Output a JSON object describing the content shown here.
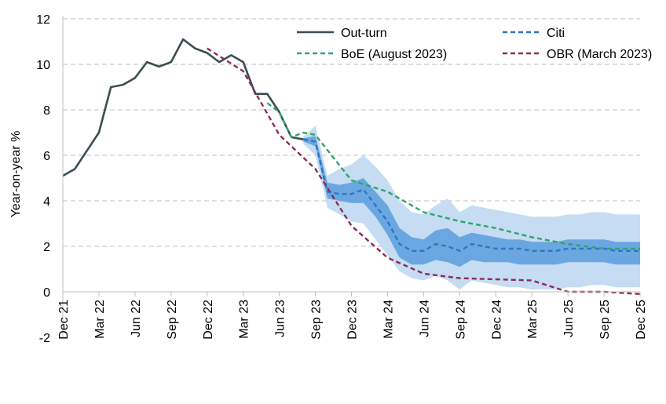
{
  "chart_data": {
    "type": "line",
    "ylabel": "Year-on-year %",
    "ylim": [
      -2,
      12
    ],
    "yticks": [
      -2,
      0,
      2,
      4,
      6,
      8,
      10,
      12
    ],
    "xlim": [
      "2021-12",
      "2025-12"
    ],
    "xticks": [
      "Dec 21",
      "Mar 22",
      "Jun 22",
      "Sep 22",
      "Dec 22",
      "Mar 23",
      "Jun 23",
      "Sep 23",
      "Dec 23",
      "Mar 24",
      "Jun 24",
      "Sep 24",
      "Dec 24",
      "Mar 25",
      "Jun 25",
      "Sep 25",
      "Dec 25"
    ],
    "grid": "horizontal dashed",
    "legend": [
      "Out-turn",
      "Citi",
      "BoE (August 2023)",
      "OBR (March 2023)"
    ],
    "series": [
      {
        "name": "Out-turn",
        "color": "#3a4e52",
        "style": "solid",
        "x": [
          "2021-12",
          "2022-01",
          "2022-02",
          "2022-03",
          "2022-04",
          "2022-05",
          "2022-06",
          "2022-07",
          "2022-08",
          "2022-09",
          "2022-10",
          "2022-11",
          "2022-12",
          "2023-01",
          "2023-02",
          "2023-03",
          "2023-04",
          "2023-05",
          "2023-06",
          "2023-07",
          "2023-08"
        ],
        "values": [
          5.1,
          5.4,
          6.2,
          7.0,
          9.0,
          9.1,
          9.4,
          10.1,
          9.9,
          10.1,
          11.1,
          10.7,
          10.5,
          10.1,
          10.4,
          10.1,
          8.7,
          8.7,
          7.9,
          6.8,
          6.7
        ]
      },
      {
        "name": "Citi",
        "color": "#2e75c4",
        "style": "dashed",
        "x": [
          "2023-08",
          "2023-09",
          "2023-10",
          "2023-11",
          "2023-12",
          "2024-01",
          "2024-02",
          "2024-03",
          "2024-04",
          "2024-05",
          "2024-06",
          "2024-07",
          "2024-08",
          "2024-09",
          "2024-10",
          "2024-11",
          "2024-12",
          "2025-01",
          "2025-02",
          "2025-03",
          "2025-04",
          "2025-05",
          "2025-06",
          "2025-07",
          "2025-08",
          "2025-09",
          "2025-10",
          "2025-11",
          "2025-12"
        ],
        "values": [
          6.7,
          6.6,
          4.4,
          4.3,
          4.3,
          4.5,
          3.8,
          3.1,
          2.1,
          1.8,
          1.8,
          2.1,
          2.0,
          1.8,
          2.1,
          2.0,
          1.9,
          1.9,
          1.9,
          1.8,
          1.8,
          1.8,
          1.9,
          1.9,
          1.9,
          1.9,
          1.8,
          1.8,
          1.8
        ]
      },
      {
        "name": "BoE (August 2023)",
        "color": "#2ea56b",
        "style": "dashed",
        "x": [
          "2023-05",
          "2023-06",
          "2023-07",
          "2023-08",
          "2023-09",
          "2023-12",
          "2024-03",
          "2024-06",
          "2024-09",
          "2024-12",
          "2025-03",
          "2025-06",
          "2025-09",
          "2025-12"
        ],
        "values": [
          8.3,
          7.9,
          6.8,
          7.0,
          6.9,
          4.9,
          4.4,
          3.5,
          3.1,
          2.8,
          2.4,
          2.1,
          1.9,
          1.9
        ]
      },
      {
        "name": "OBR (March 2023)",
        "color": "#8b2b5a",
        "style": "dashed",
        "x": [
          "2022-12",
          "2023-03",
          "2023-06",
          "2023-09",
          "2023-12",
          "2024-03",
          "2024-06",
          "2024-09",
          "2024-12",
          "2025-03",
          "2025-06",
          "2025-09",
          "2025-12"
        ],
        "values": [
          10.7,
          9.7,
          6.9,
          5.4,
          2.9,
          1.5,
          0.8,
          0.6,
          0.55,
          0.5,
          0.0,
          0.0,
          -0.1
        ]
      }
    ],
    "bands": [
      {
        "name": "outer",
        "color": "#c5dcf2",
        "x": [
          "2023-08",
          "2023-09",
          "2023-10",
          "2023-11",
          "2023-12",
          "2024-01",
          "2024-02",
          "2024-03",
          "2024-04",
          "2024-05",
          "2024-06",
          "2024-07",
          "2024-08",
          "2024-09",
          "2024-10",
          "2024-11",
          "2024-12",
          "2025-01",
          "2025-02",
          "2025-03",
          "2025-04",
          "2025-05",
          "2025-06",
          "2025-07",
          "2025-08",
          "2025-09",
          "2025-10",
          "2025-11",
          "2025-12"
        ],
        "upper": [
          6.8,
          7.3,
          5.1,
          5.4,
          5.6,
          6.0,
          5.5,
          4.9,
          4.0,
          3.5,
          3.4,
          3.8,
          4.1,
          3.5,
          3.8,
          3.7,
          3.6,
          3.5,
          3.4,
          3.3,
          3.3,
          3.3,
          3.4,
          3.4,
          3.5,
          3.5,
          3.4,
          3.4,
          3.4
        ],
        "lower": [
          6.5,
          6.0,
          3.7,
          3.4,
          3.1,
          3.0,
          2.3,
          1.6,
          0.9,
          0.6,
          0.5,
          0.7,
          0.5,
          0.1,
          0.5,
          0.4,
          0.3,
          0.2,
          0.2,
          0.1,
          0.1,
          0.1,
          0.2,
          0.2,
          0.3,
          0.3,
          0.2,
          0.2,
          0.2
        ]
      },
      {
        "name": "inner",
        "color": "#6aa7e0",
        "x": [
          "2023-08",
          "2023-09",
          "2023-10",
          "2023-11",
          "2023-12",
          "2024-01",
          "2024-02",
          "2024-03",
          "2024-04",
          "2024-05",
          "2024-06",
          "2024-07",
          "2024-08",
          "2024-09",
          "2024-10",
          "2024-11",
          "2024-12",
          "2025-01",
          "2025-02",
          "2025-03",
          "2025-04",
          "2025-05",
          "2025-06",
          "2025-07",
          "2025-08",
          "2025-09",
          "2025-10",
          "2025-11",
          "2025-12"
        ],
        "upper": [
          6.75,
          6.85,
          4.8,
          4.7,
          4.8,
          5.0,
          4.4,
          3.8,
          2.8,
          2.4,
          2.3,
          2.7,
          2.8,
          2.4,
          2.6,
          2.5,
          2.4,
          2.3,
          2.3,
          2.2,
          2.2,
          2.2,
          2.3,
          2.3,
          2.3,
          2.3,
          2.2,
          2.2,
          2.2
        ],
        "lower": [
          6.6,
          6.4,
          4.1,
          4.0,
          3.9,
          3.9,
          3.3,
          2.5,
          1.5,
          1.2,
          1.2,
          1.4,
          1.3,
          1.1,
          1.4,
          1.3,
          1.3,
          1.3,
          1.2,
          1.2,
          1.2,
          1.2,
          1.3,
          1.3,
          1.3,
          1.3,
          1.2,
          1.2,
          1.2
        ]
      }
    ]
  }
}
